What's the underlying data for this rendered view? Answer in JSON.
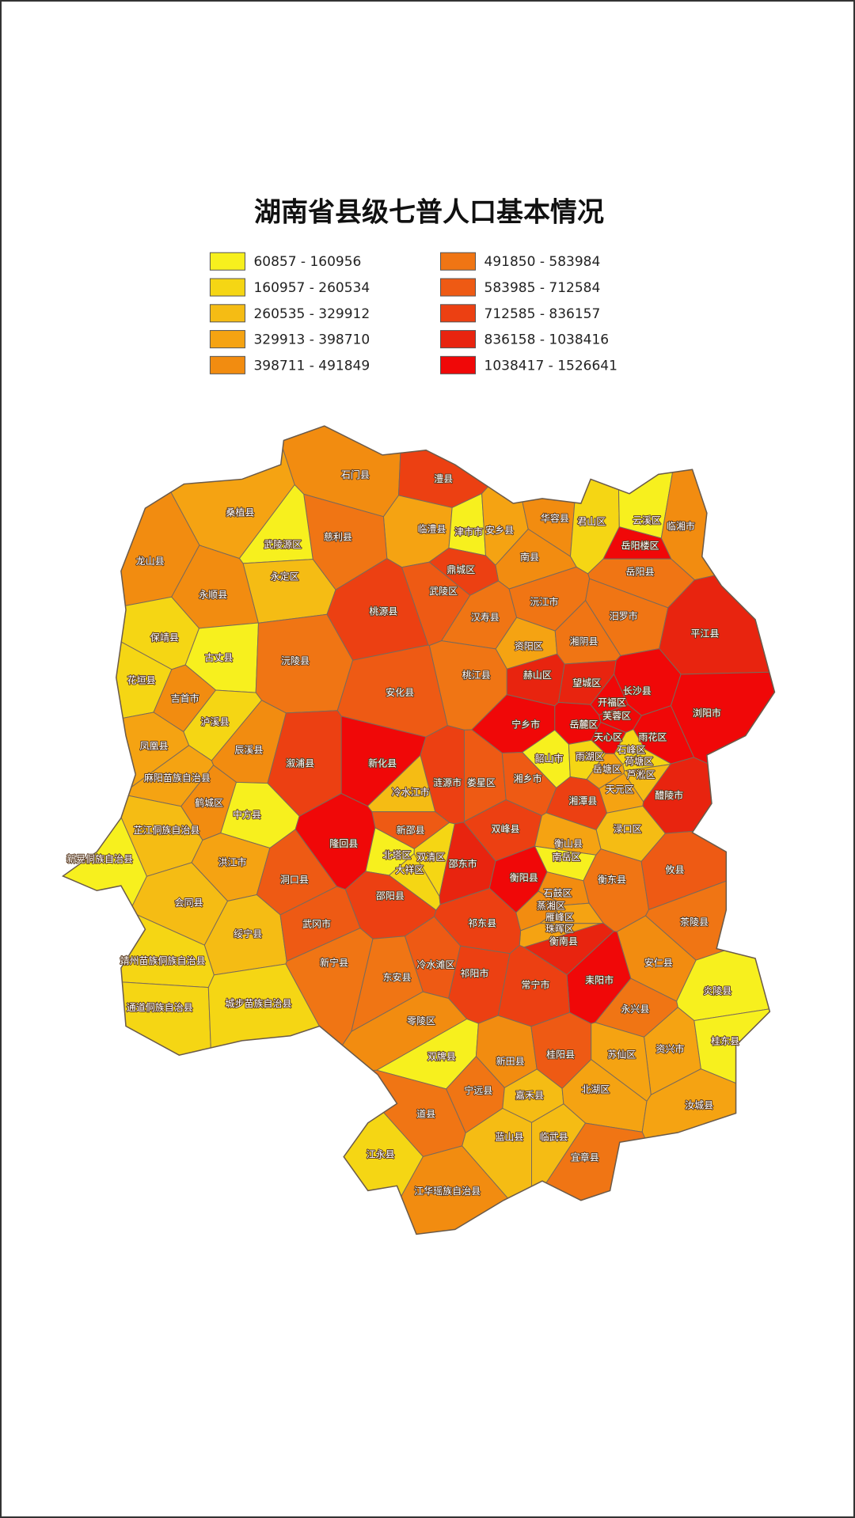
{
  "title": "湖南省县级七普人口基本情况",
  "legend": [
    {
      "label": "60857 - 160956",
      "color": "#f7f01e"
    },
    {
      "label": "160957 - 260534",
      "color": "#f5d614"
    },
    {
      "label": "260535 - 329912",
      "color": "#f5bc14"
    },
    {
      "label": "329913 - 398710",
      "color": "#f5a312"
    },
    {
      "label": "398711 - 491849",
      "color": "#f28c10"
    },
    {
      "label": "491850 - 583984",
      "color": "#f07514"
    },
    {
      "label": "583985 - 712584",
      "color": "#ee5a14"
    },
    {
      "label": "712585 - 836157",
      "color": "#ec4012"
    },
    {
      "label": "836158 - 1038416",
      "color": "#e8240f"
    },
    {
      "label": "1038417 - 1526641",
      "color": "#f00808"
    }
  ],
  "regions": [
    {
      "name": "石门县",
      "color": "#f28c10"
    },
    {
      "name": "澧县",
      "color": "#ec4012"
    },
    {
      "name": "临澧县",
      "color": "#f5a312"
    },
    {
      "name": "津市市",
      "color": "#f7f01e"
    },
    {
      "name": "安乡县",
      "color": "#f5a312"
    },
    {
      "name": "桑植县",
      "color": "#f5a312"
    },
    {
      "name": "慈利县",
      "color": "#f07514"
    },
    {
      "name": "武陵源区",
      "color": "#f7f01e"
    },
    {
      "name": "永定区",
      "color": "#f5bc14"
    },
    {
      "name": "龙山县",
      "color": "#f28c10"
    },
    {
      "name": "华容县",
      "color": "#f28c10"
    },
    {
      "name": "君山区",
      "color": "#f5d614"
    },
    {
      "name": "云溪区",
      "color": "#f7f01e"
    },
    {
      "name": "临湘市",
      "color": "#f28c10"
    },
    {
      "name": "岳阳楼区",
      "color": "#f00808"
    },
    {
      "name": "南县",
      "color": "#f28c10"
    },
    {
      "name": "鼎城区",
      "color": "#ec4012"
    },
    {
      "name": "武陵区",
      "color": "#ee5a14"
    },
    {
      "name": "永顺县",
      "color": "#f28c10"
    },
    {
      "name": "岳阳县",
      "color": "#f07514"
    },
    {
      "name": "桃源县",
      "color": "#ec4012"
    },
    {
      "name": "汉寿县",
      "color": "#f07514"
    },
    {
      "name": "沅江市",
      "color": "#f07514"
    },
    {
      "name": "汨罗市",
      "color": "#f07514"
    },
    {
      "name": "平江县",
      "color": "#e8240f"
    },
    {
      "name": "保靖县",
      "color": "#f5d614"
    },
    {
      "name": "古丈县",
      "color": "#f7f01e"
    },
    {
      "name": "沅陵县",
      "color": "#f07514"
    },
    {
      "name": "资阳区",
      "color": "#f5a312"
    },
    {
      "name": "湘阴县",
      "color": "#f07514"
    },
    {
      "name": "花垣县",
      "color": "#f5d614"
    },
    {
      "name": "桃江县",
      "color": "#f07514"
    },
    {
      "name": "赫山区",
      "color": "#e8240f"
    },
    {
      "name": "望城区",
      "color": "#e8240f"
    },
    {
      "name": "吉首市",
      "color": "#f28c10"
    },
    {
      "name": "安化县",
      "color": "#ee5a14"
    },
    {
      "name": "开福区",
      "color": "#f00808"
    },
    {
      "name": "长沙县",
      "color": "#f00808"
    },
    {
      "name": "芙蓉区",
      "color": "#f00808"
    },
    {
      "name": "浏阳市",
      "color": "#f00808"
    },
    {
      "name": "泸溪县",
      "color": "#f5d614"
    },
    {
      "name": "宁乡市",
      "color": "#f00808"
    },
    {
      "name": "岳麓区",
      "color": "#f00808"
    },
    {
      "name": "天心区",
      "color": "#f00808"
    },
    {
      "name": "雨花区",
      "color": "#f00808"
    },
    {
      "name": "凤凰县",
      "color": "#f5a312"
    },
    {
      "name": "辰溪县",
      "color": "#f28c10"
    },
    {
      "name": "石峰区",
      "color": "#f5d614"
    },
    {
      "name": "溆浦县",
      "color": "#ec4012"
    },
    {
      "name": "新化县",
      "color": "#f00808"
    },
    {
      "name": "韶山市",
      "color": "#f7f01e"
    },
    {
      "name": "雨湖区",
      "color": "#f5d614"
    },
    {
      "name": "岳塘区",
      "color": "#f5a312"
    },
    {
      "name": "荷塘区",
      "color": "#f5d614"
    },
    {
      "name": "芦淞区",
      "color": "#f5bc14"
    },
    {
      "name": "麻阳苗族自治县",
      "color": "#f5a312"
    },
    {
      "name": "涟源市",
      "color": "#ec4012"
    },
    {
      "name": "娄星区",
      "color": "#ee5a14"
    },
    {
      "name": "湘乡市",
      "color": "#ee5a14"
    },
    {
      "name": "天元区",
      "color": "#f5a312"
    },
    {
      "name": "冷水江市",
      "color": "#f5bc14"
    },
    {
      "name": "醴陵市",
      "color": "#e8240f"
    },
    {
      "name": "鹤城区",
      "color": "#f28c10"
    },
    {
      "name": "中方县",
      "color": "#f7f01e"
    },
    {
      "name": "湘潭县",
      "color": "#ec4012"
    },
    {
      "name": "芷江侗族自治县",
      "color": "#f5bc14"
    },
    {
      "name": "新邵县",
      "color": "#ee5a14"
    },
    {
      "name": "渌口区",
      "color": "#f5bc14"
    },
    {
      "name": "隆回县",
      "color": "#f00808"
    },
    {
      "name": "双峰县",
      "color": "#ec4012"
    },
    {
      "name": "衡山县",
      "color": "#f5a312"
    },
    {
      "name": "新晃侗族自治县",
      "color": "#f7f01e"
    },
    {
      "name": "洪江市",
      "color": "#f5a312"
    },
    {
      "name": "北塔区",
      "color": "#f7f01e"
    },
    {
      "name": "双清区",
      "color": "#f5d614"
    },
    {
      "name": "大祥区",
      "color": "#f5d614"
    },
    {
      "name": "邵东市",
      "color": "#e8240f"
    },
    {
      "name": "衡阳县",
      "color": "#f00808"
    },
    {
      "name": "南岳区",
      "color": "#f7f01e"
    },
    {
      "name": "衡东县",
      "color": "#f07514"
    },
    {
      "name": "攸县",
      "color": "#ee5a14"
    },
    {
      "name": "洞口县",
      "color": "#ee5a14"
    },
    {
      "name": "石鼓区",
      "color": "#f28c10"
    },
    {
      "name": "蒸湘区",
      "color": "#f28c10"
    },
    {
      "name": "会同县",
      "color": "#f5bc14"
    },
    {
      "name": "邵阳县",
      "color": "#ec4012"
    },
    {
      "name": "雁峰区",
      "color": "#f5a312"
    },
    {
      "name": "珠晖区",
      "color": "#f5a312"
    },
    {
      "name": "茶陵县",
      "color": "#f07514"
    },
    {
      "name": "祁东县",
      "color": "#ec4012"
    },
    {
      "name": "绥宁县",
      "color": "#f5bc14"
    },
    {
      "name": "武冈市",
      "color": "#ee5a14"
    },
    {
      "name": "衡南县",
      "color": "#e8240f"
    },
    {
      "name": "靖州苗族侗族自治县",
      "color": "#f5d614"
    },
    {
      "name": "新宁县",
      "color": "#f07514"
    },
    {
      "name": "冷水滩区",
      "color": "#ee5a14"
    },
    {
      "name": "安仁县",
      "color": "#f28c10"
    },
    {
      "name": "炎陵县",
      "color": "#f7f01e"
    },
    {
      "name": "耒阳市",
      "color": "#f00808"
    },
    {
      "name": "东安县",
      "color": "#f07514"
    },
    {
      "name": "祁阳市",
      "color": "#ec4012"
    },
    {
      "name": "常宁市",
      "color": "#ec4012"
    },
    {
      "name": "通道侗族自治县",
      "color": "#f5d614"
    },
    {
      "name": "城步苗族自治县",
      "color": "#f5d614"
    },
    {
      "name": "永兴县",
      "color": "#f07514"
    },
    {
      "name": "零陵区",
      "color": "#f28c10"
    },
    {
      "name": "资兴市",
      "color": "#f5a312"
    },
    {
      "name": "桂东县",
      "color": "#f7f01e"
    },
    {
      "name": "双牌县",
      "color": "#f7f01e"
    },
    {
      "name": "新田县",
      "color": "#f28c10"
    },
    {
      "name": "桂阳县",
      "color": "#ee5a14"
    },
    {
      "name": "苏仙区",
      "color": "#f5a312"
    },
    {
      "name": "宁远县",
      "color": "#f07514"
    },
    {
      "name": "嘉禾县",
      "color": "#f5bc14"
    },
    {
      "name": "北湖区",
      "color": "#f5a312"
    },
    {
      "name": "汝城县",
      "color": "#f5a312"
    },
    {
      "name": "道县",
      "color": "#f07514"
    },
    {
      "name": "蓝山县",
      "color": "#f5bc14"
    },
    {
      "name": "临武县",
      "color": "#f5bc14"
    },
    {
      "name": "江永县",
      "color": "#f5d614"
    },
    {
      "name": "宜章县",
      "color": "#f07514"
    },
    {
      "name": "江华瑶族自治县",
      "color": "#f28c10"
    }
  ]
}
